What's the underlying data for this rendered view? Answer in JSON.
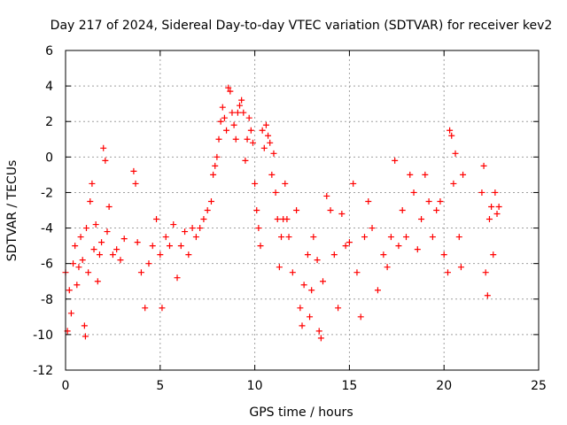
{
  "colors": {
    "series": "#ff0000",
    "grid": "#a0a0a0",
    "axis": "#000000",
    "background": "#ffffff"
  },
  "chart_data": {
    "type": "scatter",
    "title": "Day 217 of 2024, Sidereal Day-to-day VTEC variation (SDTVAR) for receiver kev2",
    "xlabel": "GPS time / hours",
    "ylabel": "SDTVAR / TECUs",
    "xlim": [
      0,
      25
    ],
    "ylim": [
      -12,
      6
    ],
    "xticks": [
      0,
      5,
      10,
      15,
      20,
      25
    ],
    "yticks": [
      -12,
      -10,
      -8,
      -6,
      -4,
      -2,
      0,
      2,
      4,
      6
    ],
    "grid": true,
    "marker": "+",
    "series": [
      {
        "name": "kev2",
        "points": [
          [
            0.0,
            -6.5
          ],
          [
            0.1,
            -9.8
          ],
          [
            0.2,
            -7.5
          ],
          [
            0.3,
            -8.8
          ],
          [
            0.4,
            -6.0
          ],
          [
            0.5,
            -5.0
          ],
          [
            0.6,
            -7.2
          ],
          [
            0.7,
            -6.2
          ],
          [
            0.8,
            -4.5
          ],
          [
            0.9,
            -5.8
          ],
          [
            1.0,
            -9.5
          ],
          [
            1.05,
            -10.1
          ],
          [
            1.1,
            -4.0
          ],
          [
            1.2,
            -6.5
          ],
          [
            1.3,
            -2.5
          ],
          [
            1.4,
            -1.5
          ],
          [
            1.5,
            -5.2
          ],
          [
            1.6,
            -3.8
          ],
          [
            1.7,
            -7.0
          ],
          [
            1.8,
            -5.5
          ],
          [
            1.9,
            -4.8
          ],
          [
            2.0,
            0.5
          ],
          [
            2.1,
            -0.2
          ],
          [
            2.2,
            -4.2
          ],
          [
            2.3,
            -2.8
          ],
          [
            2.5,
            -5.5
          ],
          [
            2.7,
            -5.2
          ],
          [
            2.9,
            -5.8
          ],
          [
            3.1,
            -4.6
          ],
          [
            3.6,
            -0.8
          ],
          [
            3.7,
            -1.5
          ],
          [
            3.8,
            -4.8
          ],
          [
            4.0,
            -6.5
          ],
          [
            4.2,
            -8.5
          ],
          [
            4.4,
            -6.0
          ],
          [
            4.6,
            -5.0
          ],
          [
            4.8,
            -3.5
          ],
          [
            5.0,
            -5.5
          ],
          [
            5.1,
            -8.5
          ],
          [
            5.3,
            -4.5
          ],
          [
            5.5,
            -5.0
          ],
          [
            5.7,
            -3.8
          ],
          [
            5.9,
            -6.8
          ],
          [
            6.1,
            -5.0
          ],
          [
            6.3,
            -4.2
          ],
          [
            6.5,
            -5.5
          ],
          [
            6.7,
            -4.0
          ],
          [
            6.9,
            -4.5
          ],
          [
            7.1,
            -4.0
          ],
          [
            7.3,
            -3.5
          ],
          [
            7.5,
            -3.0
          ],
          [
            7.7,
            -2.5
          ],
          [
            7.8,
            -1.0
          ],
          [
            7.9,
            -0.5
          ],
          [
            8.0,
            0.0
          ],
          [
            8.1,
            1.0
          ],
          [
            8.2,
            2.0
          ],
          [
            8.3,
            2.8
          ],
          [
            8.4,
            2.2
          ],
          [
            8.5,
            1.5
          ],
          [
            8.6,
            3.9
          ],
          [
            8.7,
            3.7
          ],
          [
            8.8,
            2.5
          ],
          [
            8.9,
            1.8
          ],
          [
            9.0,
            1.0
          ],
          [
            9.1,
            2.5
          ],
          [
            9.2,
            2.9
          ],
          [
            9.3,
            3.2
          ],
          [
            9.4,
            2.5
          ],
          [
            9.5,
            -0.2
          ],
          [
            9.6,
            1.0
          ],
          [
            9.7,
            2.2
          ],
          [
            9.8,
            1.5
          ],
          [
            9.9,
            0.8
          ],
          [
            10.0,
            -1.5
          ],
          [
            10.1,
            -3.0
          ],
          [
            10.2,
            -4.0
          ],
          [
            10.3,
            -5.0
          ],
          [
            10.4,
            1.5
          ],
          [
            10.5,
            0.5
          ],
          [
            10.6,
            1.8
          ],
          [
            10.7,
            1.2
          ],
          [
            10.8,
            0.8
          ],
          [
            10.9,
            -1.0
          ],
          [
            11.0,
            0.2
          ],
          [
            11.1,
            -2.0
          ],
          [
            11.2,
            -3.5
          ],
          [
            11.3,
            -6.2
          ],
          [
            11.4,
            -4.5
          ],
          [
            11.5,
            -3.5
          ],
          [
            11.6,
            -1.5
          ],
          [
            11.7,
            -3.5
          ],
          [
            11.8,
            -4.5
          ],
          [
            12.0,
            -6.5
          ],
          [
            12.2,
            -3.0
          ],
          [
            12.4,
            -8.5
          ],
          [
            12.5,
            -9.5
          ],
          [
            12.6,
            -7.2
          ],
          [
            12.8,
            -5.5
          ],
          [
            12.9,
            -9.0
          ],
          [
            13.0,
            -7.5
          ],
          [
            13.1,
            -4.5
          ],
          [
            13.3,
            -5.8
          ],
          [
            13.4,
            -9.8
          ],
          [
            13.5,
            -10.2
          ],
          [
            13.6,
            -7.0
          ],
          [
            13.8,
            -2.2
          ],
          [
            14.0,
            -3.0
          ],
          [
            14.2,
            -5.5
          ],
          [
            14.4,
            -8.5
          ],
          [
            14.6,
            -3.2
          ],
          [
            14.8,
            -5.0
          ],
          [
            15.0,
            -4.8
          ],
          [
            15.2,
            -1.5
          ],
          [
            15.4,
            -6.5
          ],
          [
            15.6,
            -9.0
          ],
          [
            15.8,
            -4.5
          ],
          [
            16.0,
            -2.5
          ],
          [
            16.2,
            -4.0
          ],
          [
            16.5,
            -7.5
          ],
          [
            16.8,
            -5.5
          ],
          [
            17.0,
            -6.2
          ],
          [
            17.2,
            -4.5
          ],
          [
            17.4,
            -0.2
          ],
          [
            17.6,
            -5.0
          ],
          [
            17.8,
            -3.0
          ],
          [
            18.0,
            -4.5
          ],
          [
            18.2,
            -1.0
          ],
          [
            18.4,
            -2.0
          ],
          [
            18.6,
            -5.2
          ],
          [
            18.8,
            -3.5
          ],
          [
            19.0,
            -1.0
          ],
          [
            19.2,
            -2.5
          ],
          [
            19.4,
            -4.5
          ],
          [
            19.6,
            -3.0
          ],
          [
            19.8,
            -2.5
          ],
          [
            20.0,
            -5.5
          ],
          [
            20.2,
            -6.5
          ],
          [
            20.3,
            1.5
          ],
          [
            20.4,
            1.2
          ],
          [
            20.5,
            -1.5
          ],
          [
            20.6,
            0.2
          ],
          [
            20.8,
            -4.5
          ],
          [
            20.9,
            -6.2
          ],
          [
            21.0,
            -1.0
          ],
          [
            22.0,
            -2.0
          ],
          [
            22.1,
            -0.5
          ],
          [
            22.2,
            -6.5
          ],
          [
            22.3,
            -7.8
          ],
          [
            22.4,
            -3.5
          ],
          [
            22.5,
            -2.8
          ],
          [
            22.6,
            -5.5
          ],
          [
            22.7,
            -2.0
          ],
          [
            22.8,
            -3.2
          ],
          [
            22.9,
            -2.8
          ]
        ]
      }
    ]
  }
}
